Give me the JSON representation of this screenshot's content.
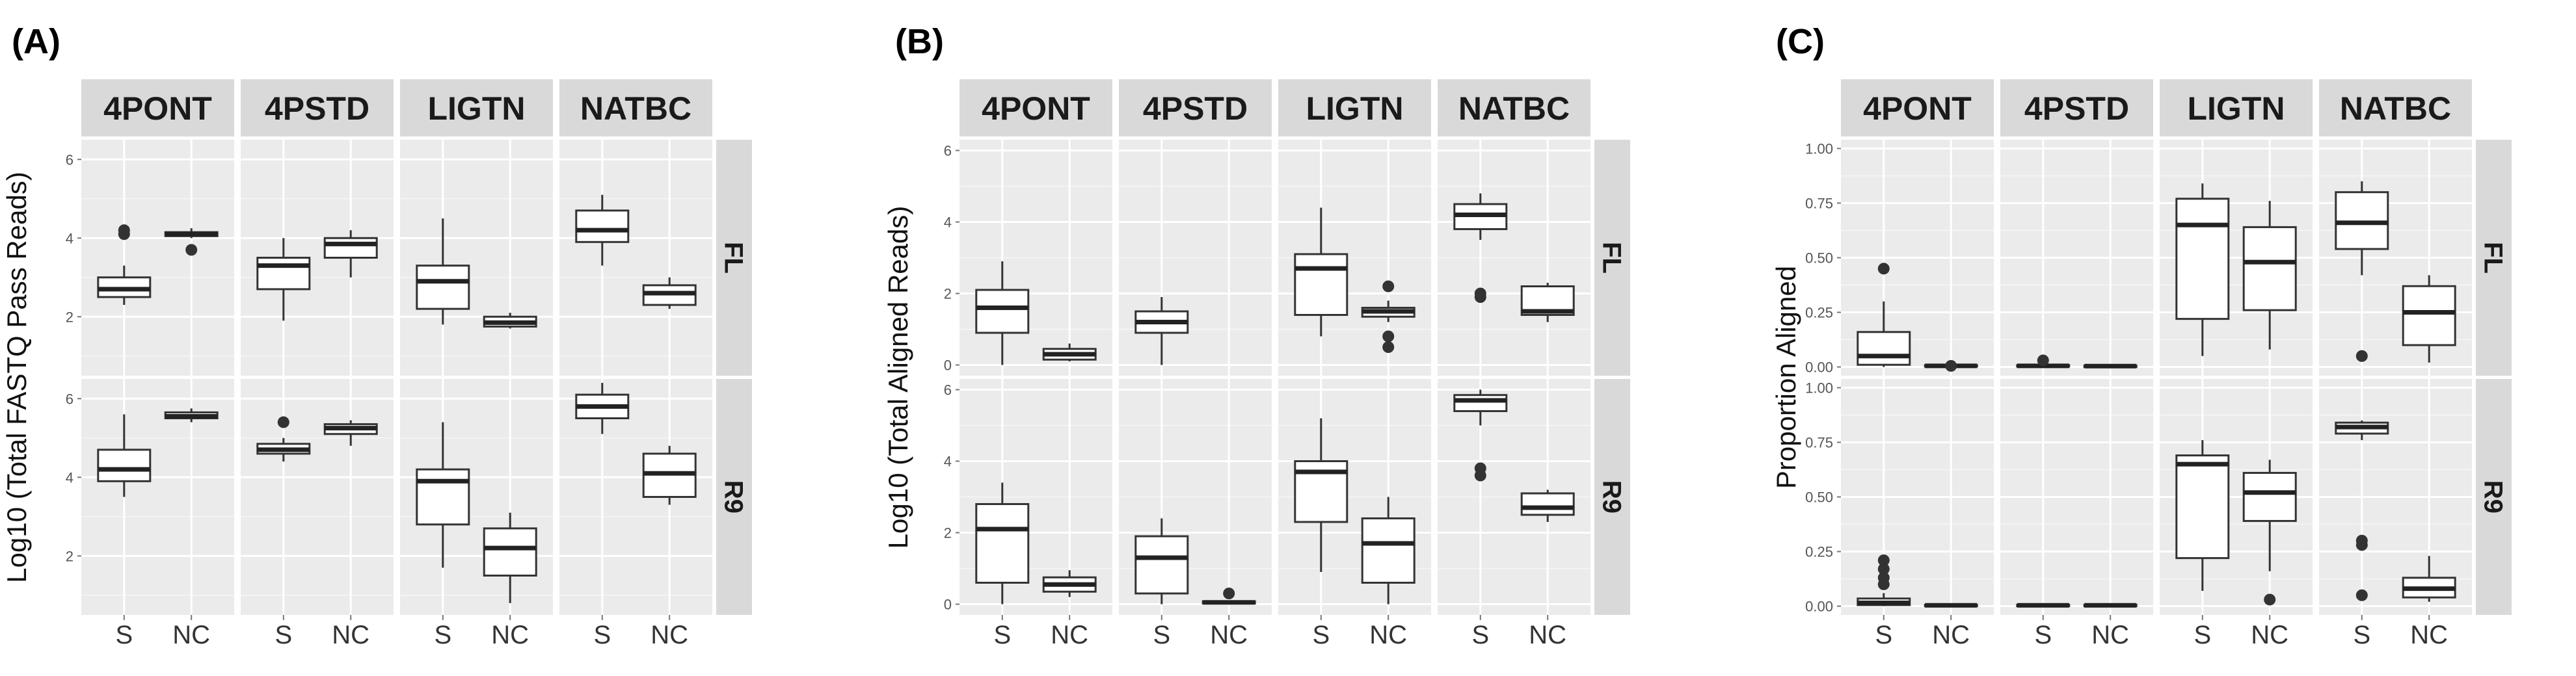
{
  "chart_data": [
    {
      "type": "box",
      "panel_label": "(A)",
      "ylabel": "Log10 (Total FASTQ Pass Reads)",
      "ylim": [
        0.5,
        6.5
      ],
      "yticks": [
        2,
        4,
        6
      ],
      "ytick_labels": [
        "2",
        "4",
        "6"
      ],
      "columns": [
        "4PONT",
        "4PSTD",
        "LIGTN",
        "NATBC"
      ],
      "rows": [
        "FL",
        "R9"
      ],
      "categories": [
        "S",
        "NC"
      ],
      "boxes": [
        {
          "row": "FL",
          "col": "4PONT",
          "cat": "S",
          "min": 2.3,
          "q1": 2.5,
          "median": 2.7,
          "q3": 3.0,
          "max": 3.3,
          "outliers": [
            4.1,
            4.2
          ]
        },
        {
          "row": "FL",
          "col": "4PONT",
          "cat": "NC",
          "min": 4.0,
          "q1": 4.05,
          "median": 4.1,
          "q3": 4.15,
          "max": 4.25,
          "outliers": [
            3.7
          ]
        },
        {
          "row": "FL",
          "col": "4PSTD",
          "cat": "S",
          "min": 1.9,
          "q1": 2.7,
          "median": 3.3,
          "q3": 3.5,
          "max": 4.0,
          "outliers": []
        },
        {
          "row": "FL",
          "col": "4PSTD",
          "cat": "NC",
          "min": 3.0,
          "q1": 3.5,
          "median": 3.85,
          "q3": 4.0,
          "max": 4.2,
          "outliers": []
        },
        {
          "row": "FL",
          "col": "LIGTN",
          "cat": "S",
          "min": 1.8,
          "q1": 2.2,
          "median": 2.9,
          "q3": 3.3,
          "max": 4.5,
          "outliers": []
        },
        {
          "row": "FL",
          "col": "LIGTN",
          "cat": "NC",
          "min": 1.7,
          "q1": 1.75,
          "median": 1.85,
          "q3": 2.0,
          "max": 2.1,
          "outliers": []
        },
        {
          "row": "FL",
          "col": "NATBC",
          "cat": "S",
          "min": 3.3,
          "q1": 3.9,
          "median": 4.2,
          "q3": 4.7,
          "max": 5.1,
          "outliers": []
        },
        {
          "row": "FL",
          "col": "NATBC",
          "cat": "NC",
          "min": 2.2,
          "q1": 2.3,
          "median": 2.6,
          "q3": 2.8,
          "max": 3.0,
          "outliers": []
        },
        {
          "row": "R9",
          "col": "4PONT",
          "cat": "S",
          "min": 3.5,
          "q1": 3.9,
          "median": 4.2,
          "q3": 4.7,
          "max": 5.6,
          "outliers": []
        },
        {
          "row": "R9",
          "col": "4PONT",
          "cat": "NC",
          "min": 5.4,
          "q1": 5.5,
          "median": 5.55,
          "q3": 5.65,
          "max": 5.75,
          "outliers": []
        },
        {
          "row": "R9",
          "col": "4PSTD",
          "cat": "S",
          "min": 4.4,
          "q1": 4.6,
          "median": 4.7,
          "q3": 4.85,
          "max": 5.0,
          "outliers": [
            5.4
          ]
        },
        {
          "row": "R9",
          "col": "4PSTD",
          "cat": "NC",
          "min": 4.8,
          "q1": 5.1,
          "median": 5.25,
          "q3": 5.35,
          "max": 5.45,
          "outliers": []
        },
        {
          "row": "R9",
          "col": "LIGTN",
          "cat": "S",
          "min": 1.7,
          "q1": 2.8,
          "median": 3.9,
          "q3": 4.2,
          "max": 5.4,
          "outliers": []
        },
        {
          "row": "R9",
          "col": "LIGTN",
          "cat": "NC",
          "min": 0.8,
          "q1": 1.5,
          "median": 2.2,
          "q3": 2.7,
          "max": 3.1,
          "outliers": []
        },
        {
          "row": "R9",
          "col": "NATBC",
          "cat": "S",
          "min": 5.1,
          "q1": 5.5,
          "median": 5.8,
          "q3": 6.1,
          "max": 6.4,
          "outliers": []
        },
        {
          "row": "R9",
          "col": "NATBC",
          "cat": "NC",
          "min": 3.3,
          "q1": 3.5,
          "median": 4.1,
          "q3": 4.6,
          "max": 4.8,
          "outliers": []
        }
      ]
    },
    {
      "type": "box",
      "panel_label": "(B)",
      "ylabel": "Log10 (Total Aligned Reads)",
      "ylim": [
        -0.3,
        6.3
      ],
      "yticks": [
        0,
        2,
        4,
        6
      ],
      "ytick_labels": [
        "0",
        "2",
        "4",
        "6"
      ],
      "columns": [
        "4PONT",
        "4PSTD",
        "LIGTN",
        "NATBC"
      ],
      "rows": [
        "FL",
        "R9"
      ],
      "categories": [
        "S",
        "NC"
      ],
      "boxes": [
        {
          "row": "FL",
          "col": "4PONT",
          "cat": "S",
          "min": 0.0,
          "q1": 0.9,
          "median": 1.6,
          "q3": 2.1,
          "max": 2.9,
          "outliers": []
        },
        {
          "row": "FL",
          "col": "4PONT",
          "cat": "NC",
          "min": 0.1,
          "q1": 0.15,
          "median": 0.3,
          "q3": 0.45,
          "max": 0.6,
          "outliers": []
        },
        {
          "row": "FL",
          "col": "4PSTD",
          "cat": "S",
          "min": 0.0,
          "q1": 0.9,
          "median": 1.2,
          "q3": 1.5,
          "max": 1.9,
          "outliers": []
        },
        {
          "row": "FL",
          "col": "LIGTN",
          "cat": "S",
          "min": 0.8,
          "q1": 1.4,
          "median": 2.7,
          "q3": 3.1,
          "max": 4.4,
          "outliers": []
        },
        {
          "row": "FL",
          "col": "LIGTN",
          "cat": "NC",
          "min": 1.2,
          "q1": 1.35,
          "median": 1.5,
          "q3": 1.6,
          "max": 1.8,
          "outliers": [
            0.5,
            0.8,
            2.2
          ]
        },
        {
          "row": "FL",
          "col": "NATBC",
          "cat": "S",
          "min": 3.5,
          "q1": 3.8,
          "median": 4.2,
          "q3": 4.5,
          "max": 4.8,
          "outliers": [
            1.9,
            2.0
          ]
        },
        {
          "row": "FL",
          "col": "NATBC",
          "cat": "NC",
          "min": 1.2,
          "q1": 1.4,
          "median": 1.5,
          "q3": 2.2,
          "max": 2.3,
          "outliers": []
        },
        {
          "row": "R9",
          "col": "4PONT",
          "cat": "S",
          "min": 0.0,
          "q1": 0.6,
          "median": 2.1,
          "q3": 2.8,
          "max": 3.4,
          "outliers": []
        },
        {
          "row": "R9",
          "col": "4PONT",
          "cat": "NC",
          "min": 0.2,
          "q1": 0.35,
          "median": 0.55,
          "q3": 0.75,
          "max": 0.95,
          "outliers": []
        },
        {
          "row": "R9",
          "col": "4PSTD",
          "cat": "S",
          "min": 0.0,
          "q1": 0.3,
          "median": 1.3,
          "q3": 1.9,
          "max": 2.4,
          "outliers": []
        },
        {
          "row": "R9",
          "col": "4PSTD",
          "cat": "NC",
          "min": 0.0,
          "q1": 0.02,
          "median": 0.05,
          "q3": 0.08,
          "max": 0.1,
          "outliers": [
            0.3
          ]
        },
        {
          "row": "R9",
          "col": "LIGTN",
          "cat": "S",
          "min": 0.9,
          "q1": 2.3,
          "median": 3.7,
          "q3": 4.0,
          "max": 5.2,
          "outliers": []
        },
        {
          "row": "R9",
          "col": "LIGTN",
          "cat": "NC",
          "min": 0.0,
          "q1": 0.6,
          "median": 1.7,
          "q3": 2.4,
          "max": 3.0,
          "outliers": []
        },
        {
          "row": "R9",
          "col": "NATBC",
          "cat": "S",
          "min": 5.0,
          "q1": 5.4,
          "median": 5.7,
          "q3": 5.85,
          "max": 6.0,
          "outliers": [
            3.6,
            3.8
          ]
        },
        {
          "row": "R9",
          "col": "NATBC",
          "cat": "NC",
          "min": 2.3,
          "q1": 2.5,
          "median": 2.7,
          "q3": 3.1,
          "max": 3.2,
          "outliers": []
        }
      ]
    },
    {
      "type": "box",
      "panel_label": "(C)",
      "ylabel": "Proportion Aligned",
      "ylim": [
        -0.04,
        1.04
      ],
      "yticks": [
        0,
        0.25,
        0.5,
        0.75,
        1.0
      ],
      "ytick_labels": [
        "0.00",
        "0.25",
        "0.50",
        "0.75",
        "1.00"
      ],
      "columns": [
        "4PONT",
        "4PSTD",
        "LIGTN",
        "NATBC"
      ],
      "rows": [
        "FL",
        "R9"
      ],
      "categories": [
        "S",
        "NC"
      ],
      "boxes": [
        {
          "row": "FL",
          "col": "4PONT",
          "cat": "S",
          "min": 0.0,
          "q1": 0.01,
          "median": 0.05,
          "q3": 0.16,
          "max": 0.3,
          "outliers": [
            0.45
          ]
        },
        {
          "row": "FL",
          "col": "4PONT",
          "cat": "NC",
          "min": 0.0,
          "q1": 0.002,
          "median": 0.005,
          "q3": 0.008,
          "max": 0.01,
          "outliers": [
            0.005
          ]
        },
        {
          "row": "FL",
          "col": "4PSTD",
          "cat": "S",
          "min": 0.0,
          "q1": 0.003,
          "median": 0.005,
          "q3": 0.008,
          "max": 0.01,
          "outliers": [
            0.03
          ]
        },
        {
          "row": "FL",
          "col": "4PSTD",
          "cat": "NC",
          "min": 0.0,
          "q1": 0.002,
          "median": 0.004,
          "q3": 0.006,
          "max": 0.008,
          "outliers": []
        },
        {
          "row": "FL",
          "col": "LIGTN",
          "cat": "S",
          "min": 0.05,
          "q1": 0.22,
          "median": 0.65,
          "q3": 0.77,
          "max": 0.84,
          "outliers": []
        },
        {
          "row": "FL",
          "col": "LIGTN",
          "cat": "NC",
          "min": 0.08,
          "q1": 0.26,
          "median": 0.48,
          "q3": 0.64,
          "max": 0.76,
          "outliers": []
        },
        {
          "row": "FL",
          "col": "NATBC",
          "cat": "S",
          "min": 0.42,
          "q1": 0.54,
          "median": 0.66,
          "q3": 0.8,
          "max": 0.85,
          "outliers": [
            0.05
          ]
        },
        {
          "row": "FL",
          "col": "NATBC",
          "cat": "NC",
          "min": 0.02,
          "q1": 0.1,
          "median": 0.25,
          "q3": 0.37,
          "max": 0.42,
          "outliers": []
        },
        {
          "row": "R9",
          "col": "4PONT",
          "cat": "S",
          "min": 0.0,
          "q1": 0.005,
          "median": 0.015,
          "q3": 0.035,
          "max": 0.06,
          "outliers": [
            0.1,
            0.13,
            0.17,
            0.21
          ]
        },
        {
          "row": "R9",
          "col": "4PONT",
          "cat": "NC",
          "min": 0.0,
          "q1": 0.002,
          "median": 0.004,
          "q3": 0.006,
          "max": 0.008,
          "outliers": []
        },
        {
          "row": "R9",
          "col": "4PSTD",
          "cat": "S",
          "min": 0.0,
          "q1": 0.002,
          "median": 0.004,
          "q3": 0.006,
          "max": 0.008,
          "outliers": []
        },
        {
          "row": "R9",
          "col": "4PSTD",
          "cat": "NC",
          "min": 0.0,
          "q1": 0.002,
          "median": 0.004,
          "q3": 0.006,
          "max": 0.008,
          "outliers": []
        },
        {
          "row": "R9",
          "col": "LIGTN",
          "cat": "S",
          "min": 0.07,
          "q1": 0.22,
          "median": 0.65,
          "q3": 0.69,
          "max": 0.76,
          "outliers": []
        },
        {
          "row": "R9",
          "col": "LIGTN",
          "cat": "NC",
          "min": 0.16,
          "q1": 0.39,
          "median": 0.52,
          "q3": 0.61,
          "max": 0.67,
          "outliers": [
            0.03
          ]
        },
        {
          "row": "R9",
          "col": "NATBC",
          "cat": "S",
          "min": 0.76,
          "q1": 0.79,
          "median": 0.82,
          "q3": 0.84,
          "max": 0.85,
          "outliers": [
            0.05,
            0.28,
            0.3
          ]
        },
        {
          "row": "R9",
          "col": "NATBC",
          "cat": "NC",
          "min": 0.02,
          "q1": 0.04,
          "median": 0.08,
          "q3": 0.13,
          "max": 0.23,
          "outliers": []
        }
      ]
    }
  ]
}
